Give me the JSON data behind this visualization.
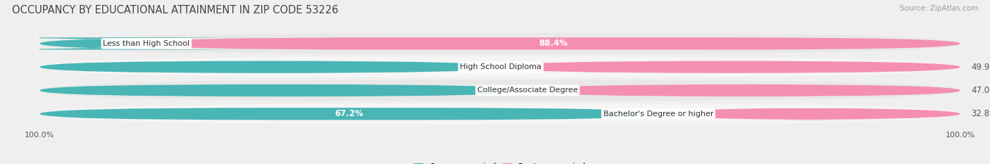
{
  "title": "OCCUPANCY BY EDUCATIONAL ATTAINMENT IN ZIP CODE 53226",
  "source": "Source: ZipAtlas.com",
  "categories": [
    "Less than High School",
    "High School Diploma",
    "College/Associate Degree",
    "Bachelor's Degree or higher"
  ],
  "owner_pct": [
    11.6,
    50.1,
    53.0,
    67.2
  ],
  "renter_pct": [
    88.4,
    49.9,
    47.0,
    32.8
  ],
  "owner_color": "#4ab5b5",
  "renter_color": "#f48fb1",
  "bg_color": "#efefef",
  "row_bg_light": "#f9f9f9",
  "row_bg_dark": "#e8e8e8",
  "title_fontsize": 10.5,
  "label_fontsize": 8.5,
  "axis_label_fontsize": 8,
  "legend_fontsize": 8.5,
  "bar_height": 0.52,
  "row_bg_colors": [
    "#e8e8e8",
    "#f5f5f5",
    "#e8e8e8",
    "#f5f5f5"
  ],
  "owner_label_white_threshold": 60,
  "renter_label_white_threshold": 60
}
